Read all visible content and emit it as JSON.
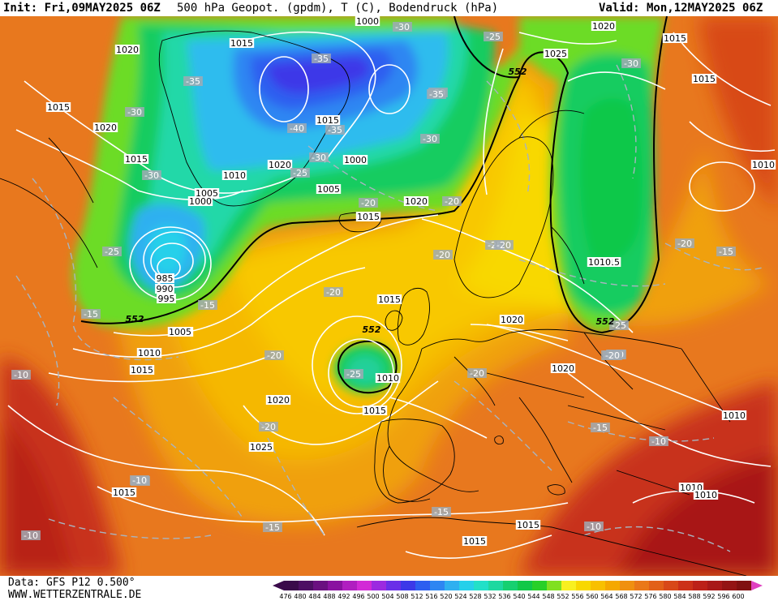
{
  "header": {
    "init": "Init: Fri,09MAY2025 06Z",
    "title": "500 hPa Geopot. (gpdm), T (C), Bodendruck (hPa)",
    "valid": "Valid: Mon,12MAY2025 06Z"
  },
  "footer": {
    "data_source": "Data: GFS P12 0.500°",
    "website": "WWW.WETTERZENTRALE.DE"
  },
  "colors": {
    "map_background": "#E8781E",
    "isobar": "#ffffff",
    "isotherm": "#b0b8c0",
    "coastline": "#000000"
  },
  "color_scale": {
    "values": [
      "476",
      "480",
      "484",
      "488",
      "492",
      "496",
      "500",
      "504",
      "508",
      "512",
      "516",
      "520",
      "524",
      "528",
      "532",
      "536",
      "540",
      "544",
      "548",
      "552",
      "556",
      "560",
      "564",
      "568",
      "572",
      "576",
      "580",
      "584",
      "588",
      "592",
      "596",
      "600"
    ],
    "colors": [
      "#3a0a4a",
      "#4d0f63",
      "#6a1080",
      "#8a12a0",
      "#b01ec0",
      "#d22ad6",
      "#9c2ae0",
      "#6a2fe8",
      "#3c38e8",
      "#2d5ef0",
      "#2e86f2",
      "#2fb0f0",
      "#26d0ea",
      "#22e0c8",
      "#1ed8a0",
      "#16d070",
      "#10c848",
      "#28d028",
      "#80e020",
      "#f8f020",
      "#f8d800",
      "#f8c000",
      "#f5a800",
      "#f09010",
      "#ea7818",
      "#e26018",
      "#d84818",
      "#cc3018",
      "#bc2018",
      "#a81818",
      "#941414",
      "#801010"
    ]
  },
  "map_labels": {
    "pressure": [
      "1000",
      "1015",
      "1020",
      "1015",
      "1020",
      "1015",
      "1010",
      "1005",
      "1000",
      "1015",
      "1020",
      "1000",
      "1005",
      "1015",
      "1020",
      "1025",
      "1020",
      "1015",
      "1015",
      "1010",
      "1005",
      "985",
      "990",
      "995",
      "1005",
      "1010",
      "1015",
      "1015",
      "1020",
      "1020",
      "1025",
      "1015",
      "1010",
      "1015",
      "1020",
      "1015",
      "1015",
      "1015",
      "1010",
      "1010",
      "1010",
      "1015",
      "1015",
      "1010"
    ],
    "temperature": [
      "-30",
      "-35",
      "-30",
      "-25",
      "-35",
      "-30",
      "-40",
      "-35",
      "-30",
      "-30",
      "-25",
      "-35",
      "-30",
      "-30",
      "-20",
      "-20",
      "-25",
      "-20",
      "-20",
      "-20",
      "-20",
      "-20",
      "-15",
      "-15",
      "-20",
      "-20",
      "-15",
      "-10",
      "-20",
      "-20",
      "-15",
      "-10",
      "-10",
      "-15",
      "-15",
      "-10",
      "-10",
      "-10",
      "-25",
      "-25",
      "-20",
      "-20",
      "-25"
    ],
    "geopotential": [
      "552",
      "552",
      "552",
      "552"
    ]
  }
}
